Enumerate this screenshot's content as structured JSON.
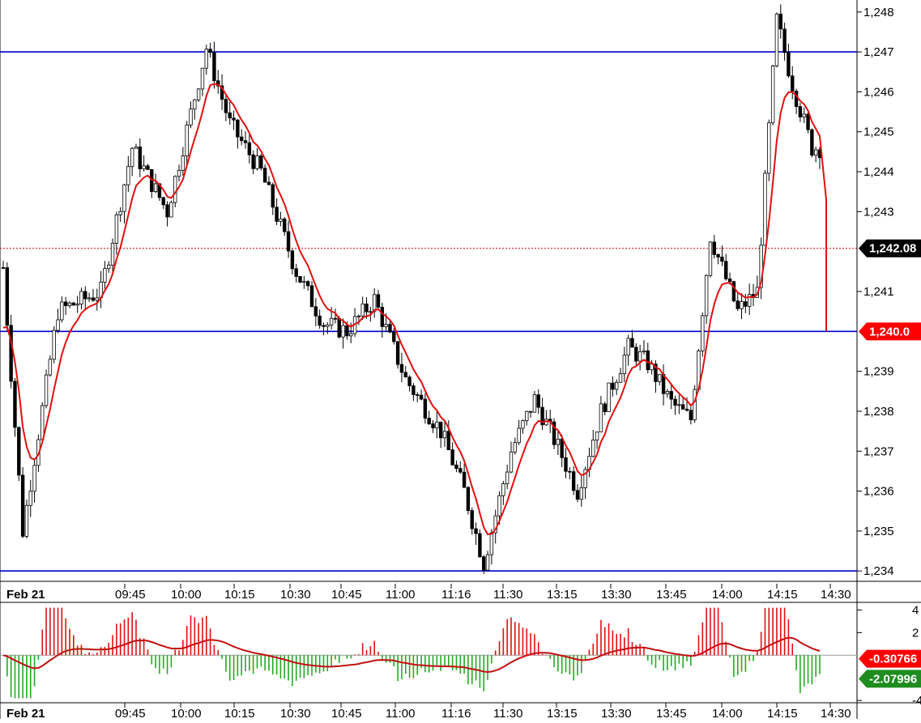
{
  "chart_data": [
    {
      "type": "candlestick",
      "panel": "price",
      "y_ticks": [
        "1,248",
        "1,247",
        "1,246",
        "1,245",
        "1,244",
        "1,243",
        "1,241",
        "1,239",
        "1,238",
        "1,237",
        "1,236",
        "1,235",
        "1,234"
      ],
      "ylim": [
        1233.7,
        1248.3
      ],
      "x_tick_labels": [
        "Feb 21",
        "09:45",
        "10:00",
        "10:15",
        "10:30",
        "10:45",
        "11:00",
        "11:16",
        "11:30",
        "13:15",
        "13:30",
        "13:45",
        "14:00",
        "14:15",
        "14:30"
      ],
      "horizontal_lines": [
        1247.0,
        1240.0,
        1234.0
      ],
      "dotted_price_line": 1242.08,
      "price_badge": {
        "label": "1,242.08",
        "color": "#000000",
        "value": 1242.08
      },
      "line_badge": {
        "label": "1,240.0",
        "color": "#ff0000",
        "value": 1240.0
      },
      "candle_count": 210,
      "ohlc": [
        [
          1241.5,
          1242.0,
          1241.0,
          1241.6
        ],
        [
          1241.4,
          1241.5,
          1239.5,
          1239.6
        ],
        [
          1239.8,
          1240.0,
          1237.5,
          1237.6
        ],
        [
          1237.6,
          1237.7,
          1235.5,
          1235.8
        ],
        [
          1235.8,
          1236.6,
          1235.6,
          1236.5
        ],
        [
          1236.5,
          1236.8,
          1235.3,
          1235.5
        ],
        [
          1235.5,
          1235.8,
          1234.8,
          1235.0
        ],
        [
          1235.1,
          1236.0,
          1234.4,
          1235.7
        ],
        [
          1235.8,
          1237.0,
          1235.6,
          1236.7
        ],
        [
          1236.8,
          1238.0,
          1236.5,
          1237.8
        ],
        [
          1237.8,
          1239.0,
          1237.5,
          1238.8
        ],
        [
          1238.8,
          1240.0,
          1238.6,
          1239.7
        ],
        [
          1239.7,
          1241.0,
          1239.5,
          1240.6
        ],
        [
          1240.6,
          1241.3,
          1240.1,
          1240.4
        ],
        [
          1240.4,
          1241.2,
          1240.0,
          1240.9
        ],
        [
          1240.9,
          1241.4,
          1240.5,
          1241.2
        ],
        [
          1241.2,
          1241.5,
          1240.6,
          1240.7
        ],
        [
          1240.7,
          1241.0,
          1240.3,
          1240.5
        ],
        [
          1240.5,
          1240.8,
          1239.9,
          1240.0
        ],
        [
          1240.0,
          1240.6,
          1239.4,
          1240.4
        ],
        [
          1240.4,
          1241.0,
          1240.2,
          1240.8
        ],
        [
          1240.8,
          1241.3,
          1240.5,
          1241.1
        ],
        [
          1241.1,
          1241.6,
          1240.8,
          1241.0
        ],
        [
          1241.0,
          1241.2,
          1240.5,
          1240.6
        ],
        [
          1240.6,
          1240.9,
          1240.3,
          1240.8
        ],
        [
          1240.8,
          1241.2,
          1240.6,
          1241.0
        ],
        [
          1241.0,
          1241.6,
          1240.8,
          1241.5
        ],
        [
          1241.5,
          1242.2,
          1241.3,
          1242.0
        ],
        [
          1242.0,
          1242.8,
          1241.8,
          1242.6
        ],
        [
          1242.6,
          1243.4,
          1242.4,
          1243.2
        ],
        [
          1243.2,
          1244.0,
          1243.0,
          1243.8
        ],
        [
          1243.8,
          1244.6,
          1243.6,
          1244.4
        ],
        [
          1244.4,
          1244.9,
          1243.8,
          1244.0
        ],
        [
          1244.0,
          1244.8,
          1243.2,
          1243.4
        ],
        [
          1243.4,
          1244.4,
          1243.2,
          1244.2
        ],
        [
          1244.2,
          1244.6,
          1243.6,
          1243.8
        ],
        [
          1243.8,
          1244.3,
          1243.2,
          1243.4
        ],
        [
          1243.4,
          1243.8,
          1242.8,
          1243.0
        ],
        [
          1243.0,
          1243.6,
          1242.8,
          1243.3
        ],
        [
          1243.3,
          1243.8,
          1243.0,
          1243.5
        ],
        [
          1243.5,
          1243.7,
          1243.0,
          1243.1
        ],
        [
          1243.1,
          1243.4,
          1242.8,
          1243.0
        ],
        [
          1243.0,
          1243.3,
          1242.8,
          1243.2
        ],
        [
          1243.2,
          1244.2,
          1243.0,
          1244.0
        ],
        [
          1244.0,
          1244.8,
          1243.8,
          1244.6
        ],
        [
          1244.6,
          1245.3,
          1244.4,
          1245.0
        ],
        [
          1245.0,
          1245.8,
          1244.8,
          1245.6
        ],
        [
          1245.6,
          1246.5,
          1245.4,
          1246.3
        ],
        [
          1246.3,
          1247.1,
          1246.0,
          1246.9
        ],
        [
          1246.9,
          1247.2,
          1246.6,
          1247.0
        ]
      ],
      "red_line_note": "overlay line series shown in red"
    },
    {
      "type": "histogram",
      "panel": "oscillator",
      "y_ticks": [
        "4",
        "2",
        "-4"
      ],
      "ylim": [
        -4.2,
        4.6
      ],
      "zero_line": 0,
      "badges": [
        {
          "label": "-0.30766",
          "color": "#ff0000",
          "value": -0.30766
        },
        {
          "label": "-2.07996",
          "color": "#1e8c1e",
          "value": -2.07996
        }
      ]
    }
  ]
}
